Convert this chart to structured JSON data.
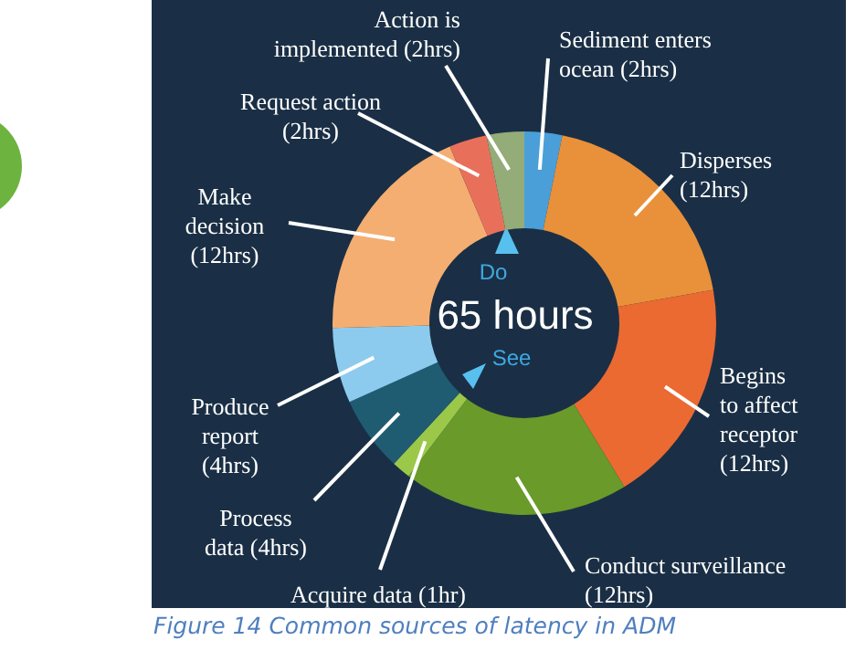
{
  "chart_data": {
    "type": "donut",
    "title": "65 hours",
    "categories": [
      "Sediment enters\nocean (2hrs)",
      "Disperses\n(12hrs)",
      "Begins\nto affect\nreceptor\n(12hrs)",
      "Conduct surveillance\n(12hrs)",
      "Acquire data (1hr)",
      "Process\ndata (4hrs)",
      "Produce\nreport\n(4hrs)",
      "Make\ndecision\n(12hrs)",
      "Request action\n(2hrs)",
      "Action is\nimplemented (2hrs)"
    ],
    "values": [
      2,
      12,
      12,
      12,
      1,
      4,
      4,
      12,
      2,
      2
    ],
    "colors": [
      "#4a9fd8",
      "#e8913a",
      "#ea6a32",
      "#6a9a2a",
      "#9cc84a",
      "#1f5c72",
      "#8ccbee",
      "#f4ae72",
      "#e8705a",
      "#93ac78"
    ],
    "annotations": [
      "Do",
      "See",
      "Figure 14 Common sources of latency in ADM"
    ]
  }
}
